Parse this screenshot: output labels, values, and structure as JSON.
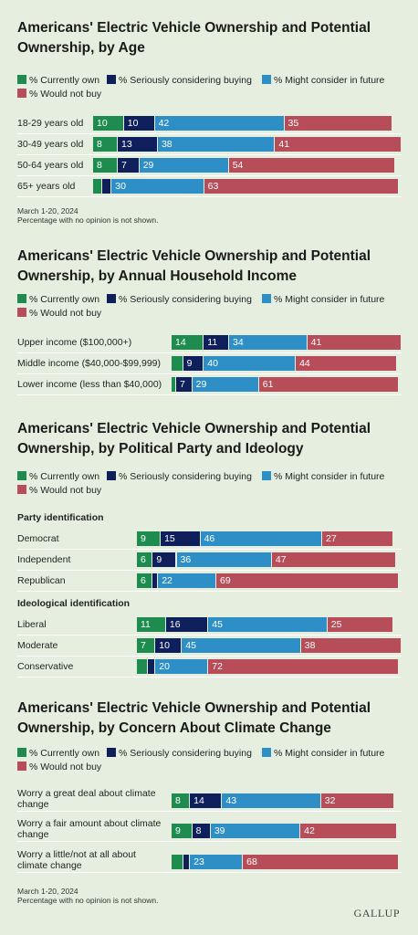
{
  "colors": {
    "currently_own": "#1e8c4e",
    "seriously_considering": "#0f1f5c",
    "might_consider": "#2e8ec6",
    "would_not_buy": "#b84d5a"
  },
  "legend": [
    {
      "key": "currently_own",
      "label": "% Currently own"
    },
    {
      "key": "seriously_considering",
      "label": "% Seriously considering buying"
    },
    {
      "key": "might_consider",
      "label": "% Might consider in future"
    },
    {
      "key": "would_not_buy",
      "label": "% Would not buy"
    }
  ],
  "chart_data": [
    {
      "type": "bar",
      "stacked": true,
      "orientation": "horizontal",
      "title": "Americans' Electric Vehicle Ownership and Potential Ownership, by Age",
      "series_names": [
        "% Currently own",
        "% Seriously considering buying",
        "% Might consider in future",
        "% Would not buy"
      ],
      "groups": [
        {
          "label": "",
          "rows": [
            {
              "label": "18-29 years old",
              "values": [
                10,
                10,
                42,
                35
              ]
            },
            {
              "label": "30-49 years old",
              "values": [
                8,
                13,
                38,
                41
              ]
            },
            {
              "label": "50-64 years old",
              "values": [
                8,
                7,
                29,
                54
              ]
            },
            {
              "label": "65+ years old",
              "values": [
                3,
                3,
                30,
                63
              ],
              "labeled": [
                false,
                false,
                true,
                true
              ]
            }
          ]
        }
      ],
      "notes": [
        "March 1-20, 2024",
        "Percentage with no opinion is not shown."
      ]
    },
    {
      "type": "bar",
      "stacked": true,
      "orientation": "horizontal",
      "title": "Americans' Electric Vehicle Ownership and Potential Ownership, by Annual Household Income",
      "series_names": [
        "% Currently own",
        "% Seriously considering buying",
        "% Might consider in future",
        "% Would not buy"
      ],
      "groups": [
        {
          "label": "",
          "rows": [
            {
              "label": "Upper income ($100,000+)",
              "values": [
                14,
                11,
                34,
                41
              ]
            },
            {
              "label": "Middle income ($40,000-$99,999)",
              "values": [
                5,
                9,
                40,
                44
              ],
              "labeled": [
                false,
                true,
                true,
                true
              ]
            },
            {
              "label": "Lower income (less than $40,000)",
              "values": [
                2,
                7,
                29,
                61
              ],
              "labeled": [
                false,
                true,
                true,
                true
              ]
            }
          ]
        }
      ],
      "notes": []
    },
    {
      "type": "bar",
      "stacked": true,
      "orientation": "horizontal",
      "title": "Americans' Electric Vehicle Ownership and Potential Ownership, by Political Party and Ideology",
      "series_names": [
        "% Currently own",
        "% Seriously considering buying",
        "% Might consider in future",
        "% Would not buy"
      ],
      "groups": [
        {
          "label": "Party identification",
          "rows": [
            {
              "label": "Democrat",
              "values": [
                9,
                15,
                46,
                27
              ]
            },
            {
              "label": "Independent",
              "values": [
                6,
                9,
                36,
                47
              ]
            },
            {
              "label": "Republican",
              "values": [
                6,
                2,
                22,
                69
              ],
              "labeled": [
                true,
                false,
                true,
                true
              ]
            }
          ]
        },
        {
          "label": "Ideological identification",
          "rows": [
            {
              "label": "Liberal",
              "values": [
                11,
                16,
                45,
                25
              ]
            },
            {
              "label": "Moderate",
              "values": [
                7,
                10,
                45,
                38
              ]
            },
            {
              "label": "Conservative",
              "values": [
                4,
                3,
                20,
                72
              ],
              "labeled": [
                false,
                false,
                true,
                true
              ]
            }
          ]
        }
      ],
      "notes": []
    },
    {
      "type": "bar",
      "stacked": true,
      "orientation": "horizontal",
      "title": "Americans' Electric Vehicle Ownership and Potential Ownership, by Concern About Climate Change",
      "series_names": [
        "% Currently own",
        "% Seriously considering buying",
        "% Might consider in future",
        "% Would not buy"
      ],
      "groups": [
        {
          "label": "",
          "rows": [
            {
              "label": "Worry a great deal about climate change",
              "values": [
                8,
                14,
                43,
                32
              ]
            },
            {
              "label": "Worry a fair amount about climate change",
              "values": [
                9,
                8,
                39,
                42
              ]
            },
            {
              "label": "Worry a little/not at all about climate change",
              "values": [
                5,
                3,
                23,
                68
              ],
              "labeled": [
                false,
                false,
                true,
                true
              ]
            }
          ]
        }
      ],
      "notes": [
        "March 1-20, 2024",
        "Percentage with no opinion is not shown."
      ]
    }
  ],
  "brand": "GALLUP"
}
